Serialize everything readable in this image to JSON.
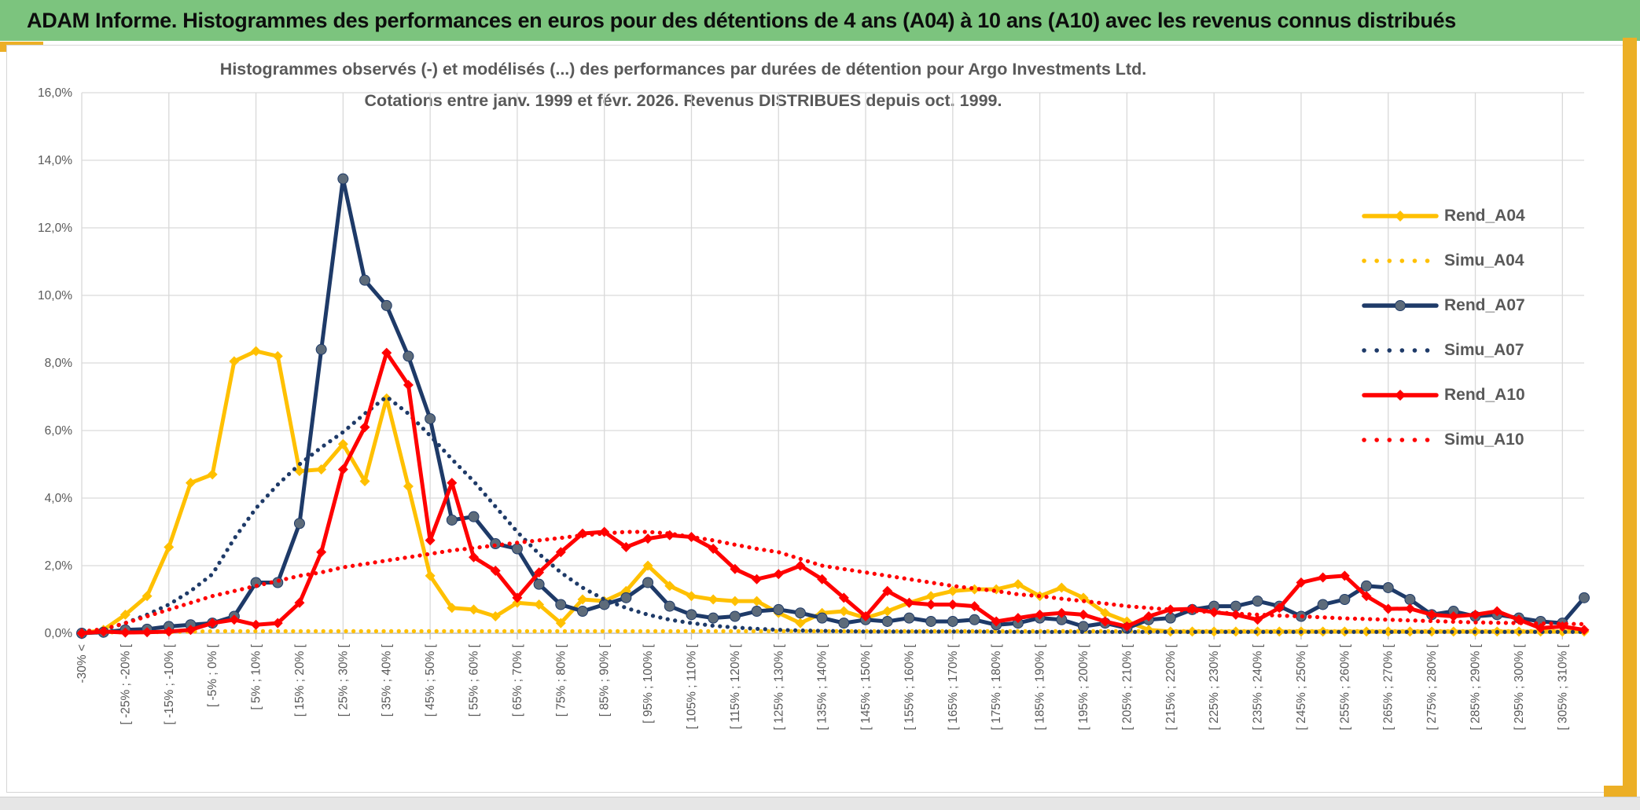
{
  "header": {
    "title": "ADAM Informe. Histogrammes des performances en euros pour des détentions de 4 ans (A04) à 10 ans (A10) avec les revenus connus distribués"
  },
  "chart": {
    "title_line1": "Histogrammes observés (-) et modélisés (...) des performances par durées de détention pour Argo Investments Ltd.",
    "title_line2": "Cotations entre janv. 1999 et févr. 2026. Revenus DISTRIBUES depuis oct. 1999.",
    "colors": {
      "banner_green": "#7CC47E",
      "frame_gold": "#ECAF26",
      "grid": "#D9D9D9",
      "axis": "#BFBFBF",
      "text": "#595959",
      "gold_series": "#FFC000",
      "navy_series": "#1E3A68",
      "navy_marker": "#5D6B7A",
      "red_series": "#FF0000"
    }
  },
  "chart_data": {
    "type": "line",
    "title": "Histogrammes observés (-) et modélisés (...) des performances par durées de détention pour Argo Investments Ltd. Cotations entre janv. 1999 et févr. 2026. Revenus DISTRIBUES depuis oct. 1999.",
    "ylim": [
      0,
      16
    ],
    "grid": "on",
    "legend_position": "right",
    "y_tick_labels": [
      "16,0%",
      "14,0%",
      "12,0%",
      "10,0%",
      "8,0%",
      "6,0%",
      "4,0%",
      "2,0%",
      "0,0%"
    ],
    "bins": 70,
    "x_label_step": 2,
    "x_grid_step": 4,
    "x_tick_labels": [
      "-30% <",
      "[ -25% ; -20% [",
      "[ -15% ; -10% [",
      "[ -5% ; 0% [",
      "[ 5% ; 10% [",
      "[ 15% ; 20% [",
      "[ 25% ; 30% [",
      "[ 35% ; 40% [",
      "[ 45% ; 50% [",
      "[ 55% ; 60% [",
      "[ 65% ; 70% [",
      "[ 75% ; 80% [",
      "[ 85% ; 90% [",
      "[ 95% ; 100% [",
      "[ 105% ; 110% [",
      "[ 115% ; 120% [",
      "[ 125% ; 130% [",
      "[ 135% ; 140% [",
      "[ 145% ; 150% [",
      "[ 155% ; 160% [",
      "[ 165% ; 170% [",
      "[ 175% ; 180% [",
      "[ 185% ; 190% [",
      "[ 195% ; 200% [",
      "[ 205% ; 210% [",
      "[ 215% ; 220% [",
      "[ 225% ; 230% [",
      "[ 235% ; 240% [",
      "[ 245% ; 250% [",
      "[ 255% ; 260% [",
      "[ 265% ; 270% [",
      "[ 275% ; 280% [",
      "[ 285% ; 290% [",
      "[ 295% ; 300% [",
      "[ 305% ; 310% ["
    ],
    "series": [
      {
        "name": "Rend_A04",
        "color": "#FFC000",
        "style": "solid",
        "marker": "diamond",
        "marker_color": "#FFC000",
        "values": [
          0,
          0.1,
          0.55,
          1.1,
          2.55,
          4.45,
          4.7,
          8.05,
          8.35,
          8.2,
          4.8,
          4.85,
          5.6,
          4.5,
          6.95,
          4.35,
          1.7,
          0.75,
          0.7,
          0.5,
          0.9,
          0.85,
          0.3,
          1.0,
          0.95,
          1.25,
          2.0,
          1.4,
          1.1,
          1.0,
          0.95,
          0.95,
          0.6,
          0.3,
          0.6,
          0.65,
          0.45,
          0.65,
          0.9,
          1.1,
          1.25,
          1.3,
          1.3,
          1.45,
          1.1,
          1.35,
          1.05,
          0.6,
          0.35,
          0.1,
          0.05,
          0.05,
          0.05,
          0.05,
          0.05,
          0.05,
          0.05,
          0.05,
          0.05,
          0.05,
          0.05,
          0.05,
          0.05,
          0.05,
          0.05,
          0.05,
          0.05,
          0.05,
          0.05,
          0.05
        ]
      },
      {
        "name": "Simu_A04",
        "color": "#FFC000",
        "style": "dotted",
        "marker": "none",
        "marker_color": "#FFC000",
        "values": [
          0.02,
          0.02,
          0.03,
          0.03,
          0.04,
          0.05,
          0.06,
          0.06,
          0.06,
          0.06,
          0.06,
          0.06,
          0.06,
          0.06,
          0.06,
          0.06,
          0.06,
          0.06,
          0.06,
          0.06,
          0.06,
          0.06,
          0.06,
          0.06,
          0.06,
          0.06,
          0.06,
          0.06,
          0.06,
          0.06,
          0.06,
          0.06,
          0.06,
          0.06,
          0.06,
          0.06,
          0.06,
          0.06,
          0.06,
          0.06,
          0.06,
          0.06,
          0.06,
          0.06,
          0.06,
          0.06,
          0.06,
          0.06,
          0.06,
          0.06,
          0.06,
          0.06,
          0.06,
          0.06,
          0.06,
          0.06,
          0.06,
          0.06,
          0.06,
          0.06,
          0.06,
          0.06,
          0.06,
          0.06,
          0.06,
          0.06,
          0.06,
          0.06,
          0.06,
          0.06
        ]
      },
      {
        "name": "Rend_A07",
        "color": "#1E3A68",
        "style": "solid",
        "marker": "circle",
        "marker_color": "#5D6B7A",
        "values": [
          0,
          0.03,
          0.1,
          0.12,
          0.2,
          0.25,
          0.3,
          0.5,
          1.5,
          1.5,
          3.25,
          8.4,
          13.45,
          10.45,
          9.7,
          8.2,
          6.35,
          3.35,
          3.45,
          2.65,
          2.5,
          1.45,
          0.85,
          0.65,
          0.85,
          1.05,
          1.5,
          0.8,
          0.55,
          0.45,
          0.5,
          0.65,
          0.7,
          0.6,
          0.45,
          0.3,
          0.4,
          0.35,
          0.45,
          0.35,
          0.35,
          0.4,
          0.25,
          0.3,
          0.45,
          0.4,
          0.2,
          0.3,
          0.15,
          0.4,
          0.45,
          0.7,
          0.8,
          0.8,
          0.95,
          0.8,
          0.5,
          0.85,
          1.0,
          1.4,
          1.35,
          1.0,
          0.55,
          0.65,
          0.5,
          0.55,
          0.45,
          0.35,
          0.3,
          1.05
        ]
      },
      {
        "name": "Simu_A07",
        "color": "#1E3A68",
        "style": "dotted",
        "marker": "none",
        "marker_color": "#1E3A68",
        "values": [
          0.05,
          0.1,
          0.3,
          0.55,
          0.85,
          1.25,
          1.75,
          2.8,
          3.7,
          4.4,
          5.0,
          5.5,
          5.95,
          6.5,
          7.0,
          6.5,
          5.85,
          5.15,
          4.5,
          3.75,
          3.0,
          2.35,
          1.8,
          1.35,
          1.0,
          0.75,
          0.55,
          0.4,
          0.3,
          0.22,
          0.17,
          0.13,
          0.1,
          0.08,
          0.07,
          0.06,
          0.05,
          0.05,
          0.05,
          0.05,
          0.05,
          0.05,
          0.04,
          0.04,
          0.04,
          0.04,
          0.04,
          0.04,
          0.04,
          0.04,
          0.04,
          0.04,
          0.04,
          0.04,
          0.04,
          0.04,
          0.04,
          0.04,
          0.04,
          0.04,
          0.04,
          0.04,
          0.04,
          0.04,
          0.04,
          0.04,
          0.04,
          0.04,
          0.04,
          0.04
        ]
      },
      {
        "name": "Rend_A10",
        "color": "#FF0000",
        "style": "solid",
        "marker": "diamond",
        "marker_color": "#FF0000",
        "values": [
          0,
          0.05,
          0.02,
          0.03,
          0.05,
          0.1,
          0.3,
          0.4,
          0.25,
          0.3,
          0.9,
          2.4,
          4.85,
          6.1,
          8.3,
          7.35,
          2.75,
          4.45,
          2.25,
          1.85,
          1.05,
          1.8,
          2.4,
          2.95,
          3.0,
          2.55,
          2.8,
          2.9,
          2.85,
          2.5,
          1.9,
          1.6,
          1.75,
          2.0,
          1.6,
          1.05,
          0.5,
          1.25,
          0.9,
          0.85,
          0.85,
          0.8,
          0.35,
          0.45,
          0.55,
          0.6,
          0.55,
          0.35,
          0.2,
          0.5,
          0.7,
          0.72,
          0.62,
          0.55,
          0.4,
          0.75,
          1.5,
          1.65,
          1.7,
          1.1,
          0.72,
          0.73,
          0.55,
          0.5,
          0.55,
          0.65,
          0.4,
          0.15,
          0.2,
          0.1
        ]
      },
      {
        "name": "Simu_A10",
        "color": "#FF0000",
        "style": "dotted",
        "marker": "none",
        "marker_color": "#FF0000",
        "values": [
          0.05,
          0.12,
          0.3,
          0.5,
          0.7,
          0.9,
          1.1,
          1.25,
          1.4,
          1.55,
          1.7,
          1.8,
          1.95,
          2.05,
          2.15,
          2.25,
          2.35,
          2.45,
          2.52,
          2.6,
          2.68,
          2.75,
          2.82,
          2.9,
          2.95,
          3.0,
          3.0,
          2.95,
          2.85,
          2.75,
          2.62,
          2.5,
          2.4,
          2.2,
          2.0,
          1.9,
          1.8,
          1.7,
          1.6,
          1.5,
          1.4,
          1.32,
          1.25,
          1.15,
          1.1,
          1.02,
          0.95,
          0.88,
          0.8,
          0.75,
          0.7,
          0.66,
          0.62,
          0.58,
          0.55,
          0.52,
          0.5,
          0.47,
          0.44,
          0.42,
          0.4,
          0.38,
          0.36,
          0.34,
          0.32,
          0.31,
          0.3,
          0.29,
          0.28,
          0.27
        ]
      }
    ]
  }
}
